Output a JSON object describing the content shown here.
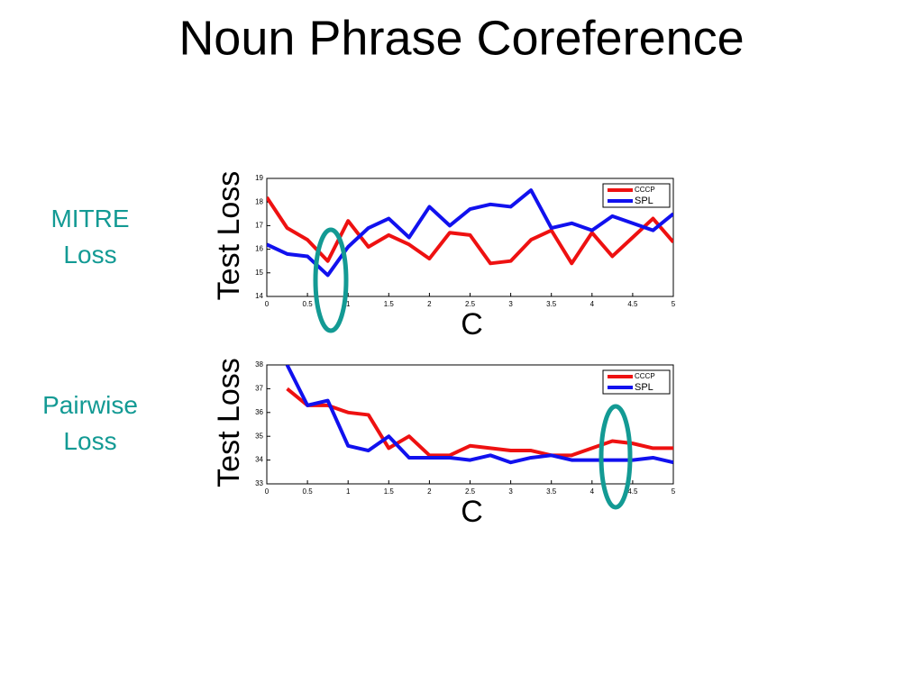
{
  "title": "Noun Phrase Coreference",
  "chart_data": [
    {
      "type": "line",
      "row_label": "MITRE Loss",
      "xlabel": "C",
      "ylabel": "Test Loss",
      "x": [
        0,
        0.25,
        0.5,
        0.75,
        1,
        1.25,
        1.5,
        1.75,
        2,
        2.25,
        2.5,
        2.75,
        3,
        3.25,
        3.5,
        3.75,
        4,
        4.25,
        4.5,
        4.75,
        5
      ],
      "series": [
        {
          "name": "CCCP",
          "color": "#ee1111",
          "values": [
            18.2,
            16.9,
            16.4,
            15.5,
            17.2,
            16.1,
            16.6,
            16.2,
            15.6,
            16.7,
            16.6,
            15.4,
            15.5,
            16.4,
            16.8,
            15.4,
            16.7,
            15.7,
            16.5,
            17.3,
            16.3
          ]
        },
        {
          "name": "SPL",
          "color": "#1111ee",
          "values": [
            16.2,
            15.8,
            15.7,
            14.9,
            16.1,
            16.9,
            17.3,
            16.5,
            17.8,
            17.0,
            17.7,
            17.9,
            17.8,
            18.5,
            16.9,
            17.1,
            16.8,
            17.4,
            17.1,
            16.8,
            17.5
          ]
        }
      ],
      "xlim": [
        0,
        5
      ],
      "xticks": [
        0,
        0.5,
        1,
        1.5,
        2,
        2.5,
        3,
        3.5,
        4,
        4.5,
        5
      ],
      "ylim": [
        14,
        19
      ],
      "yticks": [
        14,
        15,
        16,
        17,
        18,
        19
      ],
      "legend": "upper right"
    },
    {
      "type": "line",
      "row_label": "Pairwise Loss",
      "xlabel": "C",
      "ylabel": "Test Loss",
      "x": [
        0,
        0.25,
        0.5,
        0.75,
        1,
        1.25,
        1.5,
        1.75,
        2,
        2.25,
        2.5,
        2.75,
        3,
        3.25,
        3.5,
        3.75,
        4,
        4.25,
        4.5,
        4.75,
        5
      ],
      "series": [
        {
          "name": "CCCP",
          "color": "#ee1111",
          "values": [
            null,
            37.0,
            36.3,
            36.3,
            36.0,
            35.9,
            34.5,
            35.0,
            34.2,
            34.2,
            34.6,
            34.5,
            34.4,
            34.4,
            34.2,
            34.2,
            34.5,
            34.8,
            34.7,
            34.5,
            34.5
          ]
        },
        {
          "name": "SPL",
          "color": "#1111ee",
          "values": [
            null,
            38.0,
            36.3,
            36.5,
            34.6,
            34.4,
            35.0,
            34.1,
            34.1,
            34.1,
            34.0,
            34.2,
            33.9,
            34.1,
            34.2,
            34.0,
            34.0,
            34.0,
            34.0,
            34.1,
            33.9
          ]
        }
      ],
      "xlim": [
        0,
        5
      ],
      "xticks": [
        0,
        0.5,
        1,
        1.5,
        2,
        2.5,
        3,
        3.5,
        4,
        4.5,
        5
      ],
      "ylim": [
        33,
        38
      ],
      "yticks": [
        33,
        34,
        35,
        36,
        37,
        38
      ],
      "legend": "upper right"
    }
  ]
}
